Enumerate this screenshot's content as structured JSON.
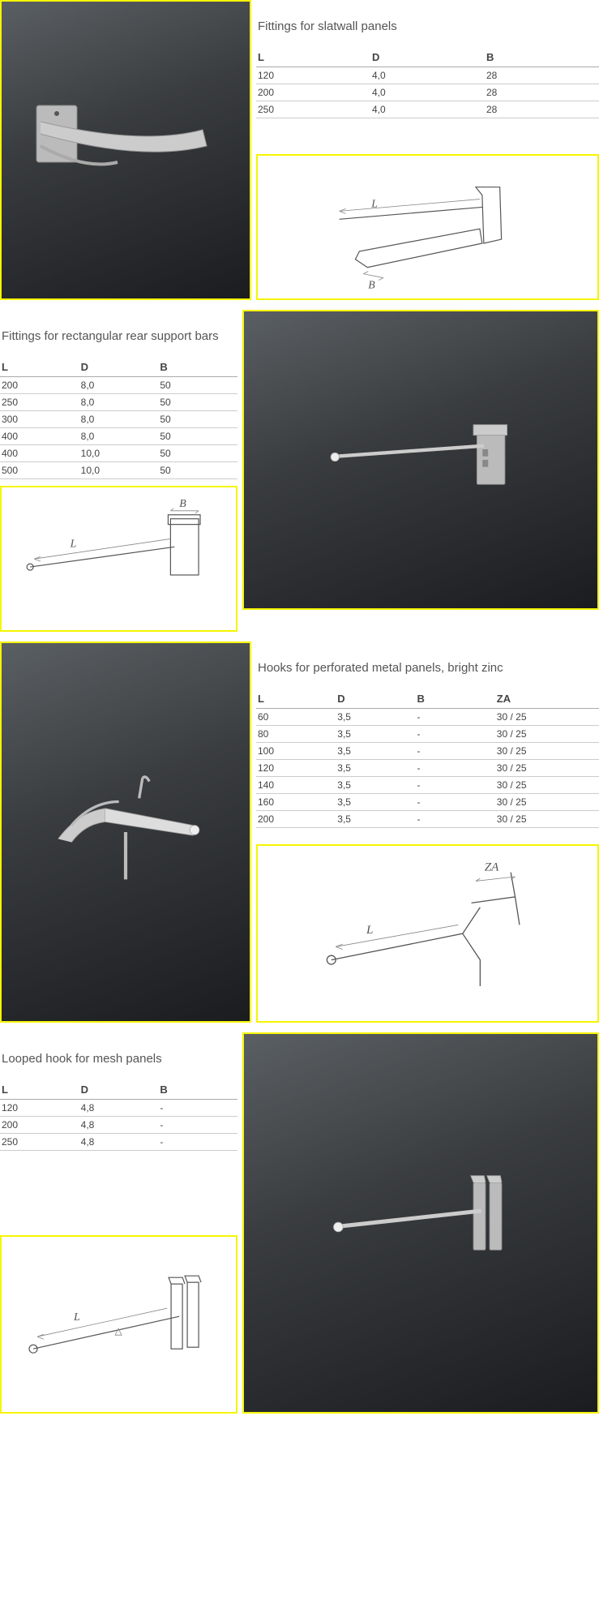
{
  "accent_color": "#f5f500",
  "text_color": "#555555",
  "sections": [
    {
      "title": "Fittings for slatwall panels",
      "table": {
        "columns": [
          "L",
          "D",
          "B"
        ],
        "rows": [
          [
            "120",
            "4,0",
            "28"
          ],
          [
            "200",
            "4,0",
            "28"
          ],
          [
            "250",
            "4,0",
            "28"
          ]
        ]
      },
      "diagram_labels": {
        "l": "L",
        "b": "B"
      }
    },
    {
      "title": "Fittings for rectangular rear support bars",
      "table": {
        "columns": [
          "L",
          "D",
          "B"
        ],
        "rows": [
          [
            "200",
            "8,0",
            "50"
          ],
          [
            "250",
            "8,0",
            "50"
          ],
          [
            "300",
            "8,0",
            "50"
          ],
          [
            "400",
            "8,0",
            "50"
          ],
          [
            "400",
            "10,0",
            "50"
          ],
          [
            "500",
            "10,0",
            "50"
          ]
        ]
      },
      "diagram_labels": {
        "l": "L",
        "b": "B"
      }
    },
    {
      "title": "Hooks for perforated metal panels, bright zinc",
      "table": {
        "columns": [
          "L",
          "D",
          "B",
          "ZA"
        ],
        "rows": [
          [
            "60",
            "3,5",
            "-",
            "30 / 25"
          ],
          [
            "80",
            "3,5",
            "-",
            "30 / 25"
          ],
          [
            "100",
            "3,5",
            "-",
            "30 / 25"
          ],
          [
            "120",
            "3,5",
            "-",
            "30 / 25"
          ],
          [
            "140",
            "3,5",
            "-",
            "30 / 25"
          ],
          [
            "160",
            "3,5",
            "-",
            "30 / 25"
          ],
          [
            "200",
            "3,5",
            "-",
            "30 / 25"
          ]
        ]
      },
      "diagram_labels": {
        "l": "L",
        "za": "ZA"
      }
    },
    {
      "title": "Looped hook for mesh panels",
      "table": {
        "columns": [
          "L",
          "D",
          "B"
        ],
        "rows": [
          [
            "120",
            "4,8",
            "-"
          ],
          [
            "200",
            "4,8",
            "-"
          ],
          [
            "250",
            "4,8",
            "-"
          ]
        ]
      },
      "diagram_labels": {
        "l": "L"
      }
    }
  ]
}
